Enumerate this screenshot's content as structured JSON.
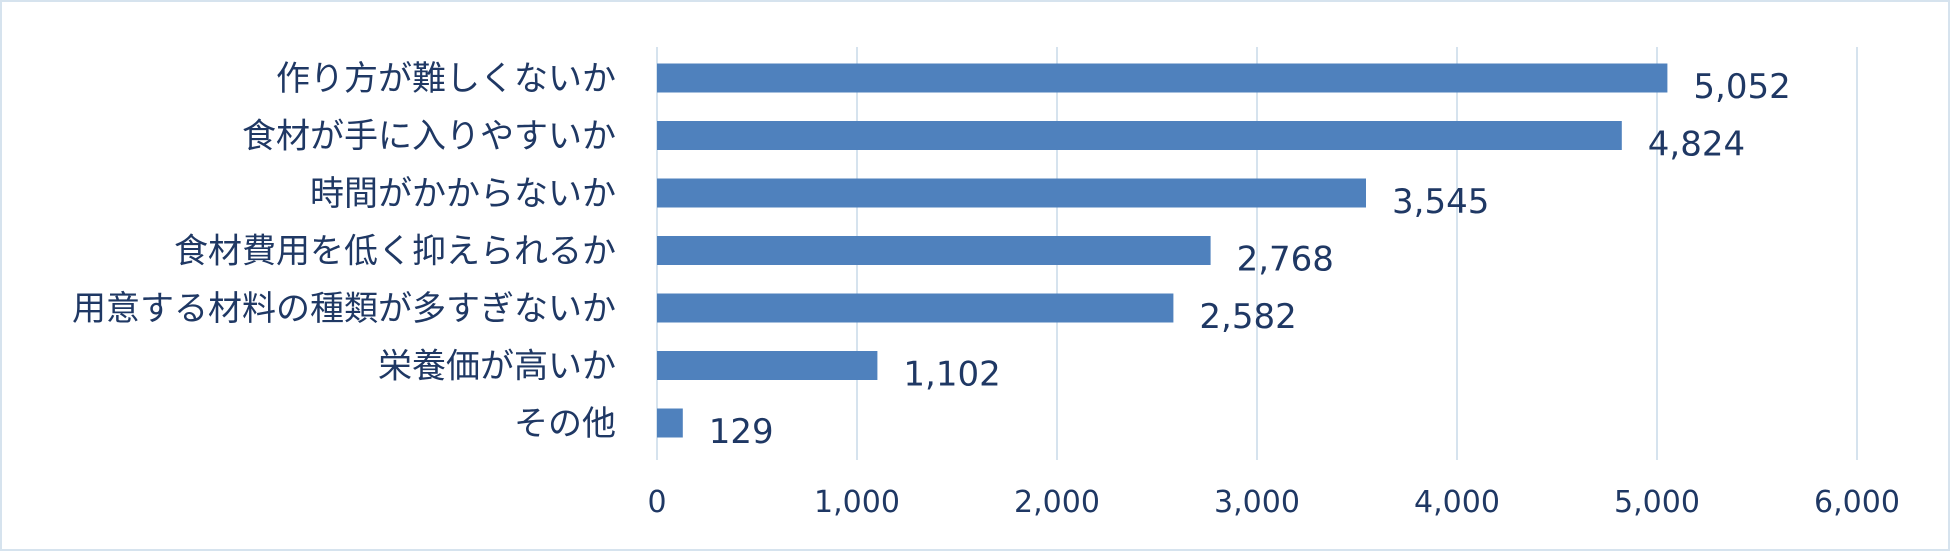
{
  "chart_data": {
    "type": "bar",
    "orientation": "horizontal",
    "categories": [
      "作り方が難しくないか",
      "食材が手に入りやすいか",
      "時間がかからないか",
      "食材費用を低く抑えられるか",
      "用意する材料の種類が多すぎないか",
      "栄養価が高いか",
      "その他"
    ],
    "values": [
      5052,
      4824,
      3545,
      2768,
      2582,
      1102,
      129
    ],
    "data_labels": [
      "5,052",
      "4,824",
      "3,545",
      "2,768",
      "2,582",
      "1,102",
      "129"
    ],
    "xlim": [
      0,
      6000
    ],
    "x_ticks": [
      0,
      1000,
      2000,
      3000,
      4000,
      5000,
      6000
    ],
    "x_tick_labels": [
      "0",
      "1,000",
      "2,000",
      "3,000",
      "4,000",
      "5,000",
      "6,000"
    ],
    "grid": "vertical",
    "legend": "none",
    "title": "",
    "xlabel": "",
    "ylabel": "",
    "colors": {
      "bar": "#4f81bd",
      "grid": "#d6e3ee",
      "text": "#1f3864",
      "frame": "#d6e3ee"
    }
  }
}
